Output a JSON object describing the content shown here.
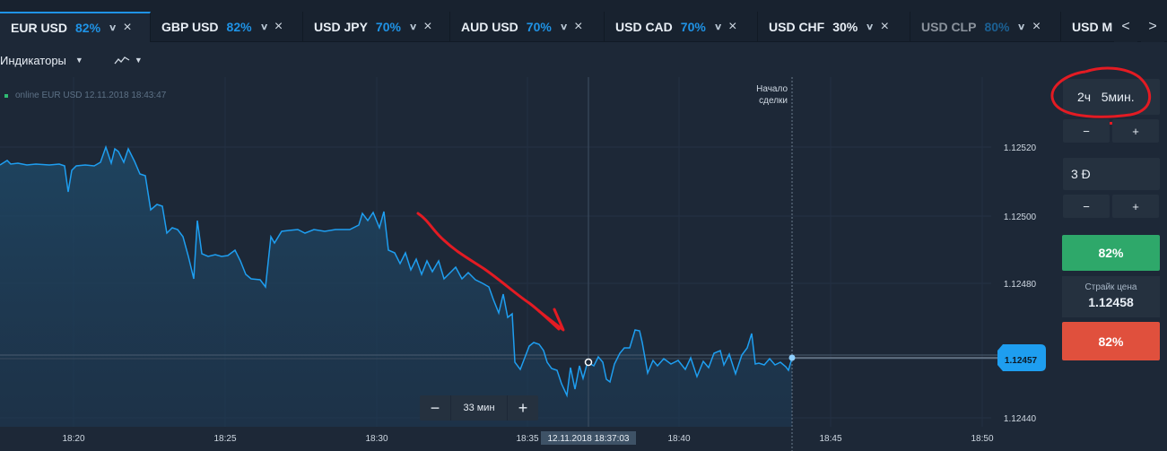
{
  "tabs": [
    {
      "name": "EUR USD",
      "pct": "82%"
    },
    {
      "name": "GBP USD",
      "pct": "82%"
    },
    {
      "name": "USD JPY",
      "pct": "70%"
    },
    {
      "name": "AUD USD",
      "pct": "70%"
    },
    {
      "name": "USD CAD",
      "pct": "70%"
    },
    {
      "name": "USD CHF",
      "pct": "30%"
    },
    {
      "name": "USD CLP",
      "pct": "80%"
    },
    {
      "name": "USD M"
    }
  ],
  "toolbar": {
    "indicators_label": "Индикаторы"
  },
  "chart": {
    "online_label": "online EUR USD 12.11.2018 18:43:47",
    "deal_start_label_1": "Начало",
    "deal_start_label_2": "сделки",
    "y_ticks": [
      "1.12520",
      "1.12500",
      "1.12480",
      "1.12440"
    ],
    "x_ticks": [
      "18:20",
      "18:25",
      "18:30",
      "18:35",
      "18:40",
      "18:45",
      "18:50"
    ],
    "crosshair_time": "12.11.2018 18:37:03",
    "current_price": "1.12457",
    "zoom_value": "33 мин",
    "colors": {
      "line": "#1e9ef0",
      "annotation": "#e31b23",
      "badge": "#1e9ef0"
    }
  },
  "panel": {
    "time_value": "2ч   5мин.",
    "amount_value": "3 Đ",
    "minus": "−",
    "plus": "+",
    "up_pct": "82%",
    "strike_label": "Страйк цена",
    "strike_value": "1.12458",
    "down_pct": "82%"
  }
}
